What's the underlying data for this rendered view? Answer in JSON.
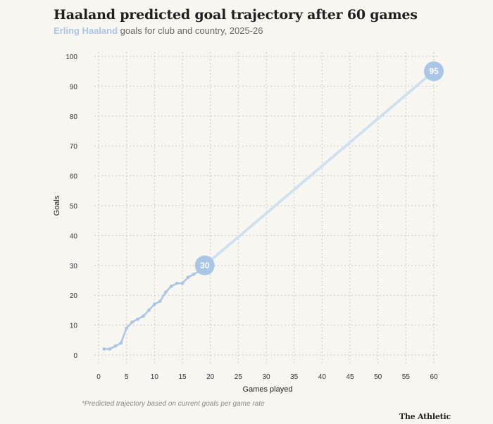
{
  "title": "Haaland predicted goal trajectory after 60 games",
  "subtitle": {
    "highlight": "Erling Haaland",
    "rest": " goals for club and country, 2025-26"
  },
  "footnote": "*Predicted trajectory based on current goals per game rate",
  "brand": "The Athletic",
  "colors": {
    "background": "#f7f6f1",
    "actual": "#a9c6e6",
    "predicted": "#cfe0f1",
    "grid": "#c8c8c8"
  },
  "chart_data": {
    "type": "line",
    "title": "Haaland predicted goal trajectory after 60 games",
    "xlabel": "Games played",
    "ylabel": "Goals",
    "xlim": [
      0,
      60
    ],
    "ylim": [
      0,
      100
    ],
    "xticks": [
      0,
      5,
      10,
      15,
      20,
      25,
      30,
      35,
      40,
      45,
      50,
      55,
      60
    ],
    "yticks": [
      0,
      10,
      20,
      30,
      40,
      50,
      60,
      70,
      80,
      90,
      100
    ],
    "grid": true,
    "series": [
      {
        "x": [
          1,
          2,
          3,
          4,
          5,
          6,
          7,
          8,
          9,
          10,
          11,
          12,
          13,
          14,
          15,
          16,
          17,
          18,
          19
        ],
        "y": [
          2,
          2,
          3,
          4,
          9,
          11,
          12,
          13,
          15,
          17,
          18,
          21,
          23,
          24,
          24,
          26,
          27,
          28,
          30
        ]
      },
      {
        "x": [
          19,
          60
        ],
        "y": [
          30,
          95
        ]
      }
    ],
    "annotations": [
      {
        "x": 19,
        "y": 30,
        "text": "30"
      },
      {
        "x": 60,
        "y": 95,
        "text": "95"
      }
    ]
  }
}
